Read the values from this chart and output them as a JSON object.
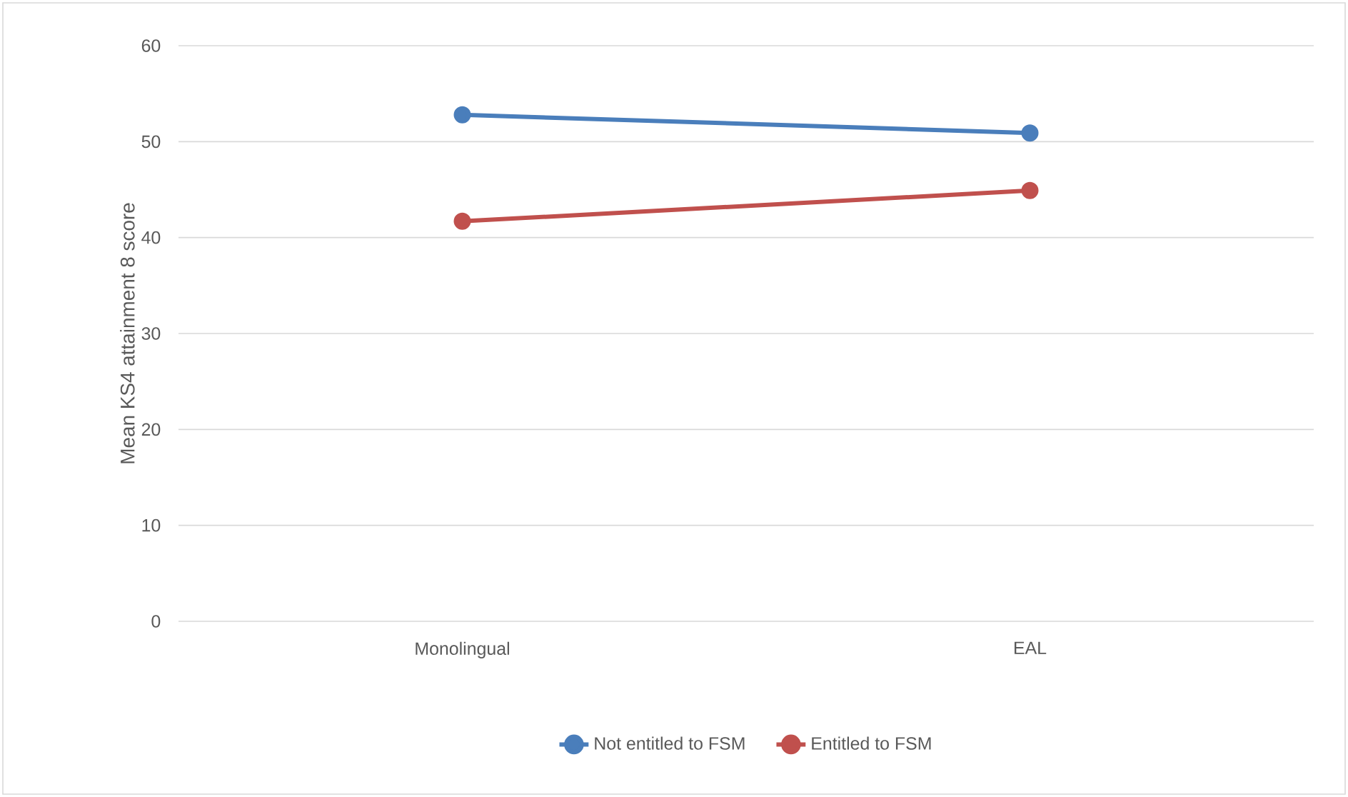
{
  "chart_data": {
    "type": "line",
    "ylabel": "Mean KS4 attainment 8 score",
    "categories": [
      "Monolingual",
      "EAL"
    ],
    "series": [
      {
        "name": "Not entitled to FSM",
        "color": "#4a7ebb",
        "values": [
          52.8,
          50.9
        ]
      },
      {
        "name": "Entitled to FSM",
        "color": "#c0504d",
        "values": [
          41.7,
          44.9
        ]
      }
    ],
    "ylim": [
      0,
      60
    ],
    "yticks": [
      0,
      10,
      20,
      30,
      40,
      50,
      60
    ],
    "grid": "y",
    "legend": "bottom",
    "marker": "circle",
    "line_style": "solid"
  }
}
